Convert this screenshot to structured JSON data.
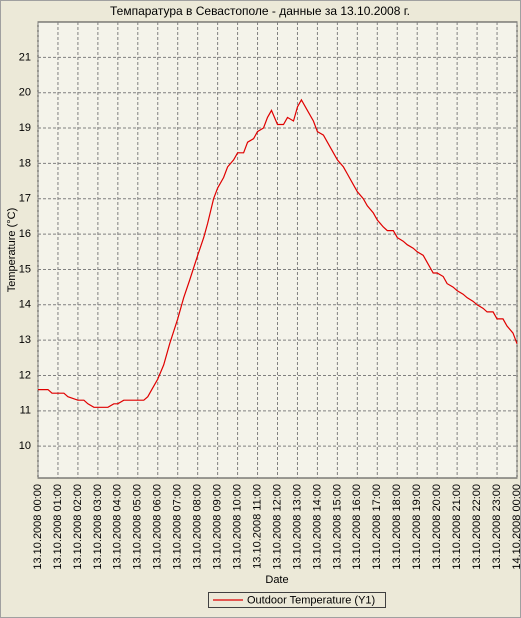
{
  "chart_data": {
    "type": "line",
    "title": "Темпаратура в Севастополе - данные за 13.10.2008 г.",
    "x_label": "Date",
    "y_label": "Temperature (°C)",
    "x": [
      0,
      0.5,
      0.7,
      1.0,
      1.3,
      1.5,
      2.0,
      2.3,
      2.5,
      2.8,
      3.0,
      3.5,
      3.8,
      4.0,
      4.3,
      5.0,
      5.3,
      5.5,
      5.7,
      6.0,
      6.3,
      6.6,
      7.0,
      7.3,
      7.6,
      8.0,
      8.3,
      8.5,
      8.8,
      9.0,
      9.3,
      9.5,
      9.8,
      10.0,
      10.3,
      10.5,
      10.8,
      11.0,
      11.3,
      11.5,
      11.7,
      12.0,
      12.3,
      12.5,
      12.8,
      13.0,
      13.2,
      13.5,
      13.8,
      14.0,
      14.3,
      14.5,
      14.8,
      15.0,
      15.3,
      15.5,
      15.8,
      16.0,
      16.3,
      16.5,
      16.8,
      17.0,
      17.3,
      17.5,
      17.8,
      18.0,
      18.3,
      18.5,
      18.8,
      19.0,
      19.3,
      19.5,
      19.8,
      20.0,
      20.3,
      20.5,
      20.8,
      21.0,
      21.3,
      21.5,
      21.8,
      22.0,
      22.3,
      22.5,
      22.8,
      23.0,
      23.3,
      23.5,
      23.8,
      24.0
    ],
    "series": [
      {
        "name": "Outdoor Temperature (Y1)",
        "color": "#e00000",
        "values": [
          11.6,
          11.6,
          11.5,
          11.5,
          11.5,
          11.4,
          11.3,
          11.3,
          11.2,
          11.1,
          11.1,
          11.1,
          11.2,
          11.2,
          11.3,
          11.3,
          11.3,
          11.4,
          11.6,
          11.9,
          12.3,
          12.9,
          13.6,
          14.2,
          14.7,
          15.4,
          15.9,
          16.3,
          17.0,
          17.3,
          17.6,
          17.9,
          18.1,
          18.3,
          18.3,
          18.6,
          18.7,
          18.9,
          19.0,
          19.3,
          19.5,
          19.1,
          19.1,
          19.3,
          19.2,
          19.6,
          19.8,
          19.5,
          19.2,
          18.9,
          18.8,
          18.6,
          18.3,
          18.1,
          17.9,
          17.7,
          17.4,
          17.2,
          17.0,
          16.8,
          16.6,
          16.4,
          16.2,
          16.1,
          16.1,
          15.9,
          15.8,
          15.7,
          15.6,
          15.5,
          15.4,
          15.2,
          14.9,
          14.9,
          14.8,
          14.6,
          14.5,
          14.4,
          14.3,
          14.2,
          14.1,
          14.0,
          13.9,
          13.8,
          13.8,
          13.6,
          13.6,
          13.4,
          13.2,
          12.9
        ]
      }
    ],
    "xlim": [
      0,
      24
    ],
    "xticks": [
      {
        "value": 0,
        "label": "13.10.2008 00:00"
      },
      {
        "value": 1,
        "label": "13.10.2008 01:00"
      },
      {
        "value": 2,
        "label": "13.10.2008 02:00"
      },
      {
        "value": 3,
        "label": "13.10.2008 03:00"
      },
      {
        "value": 4,
        "label": "13.10.2008 04:00"
      },
      {
        "value": 5,
        "label": "13.10.2008 05:00"
      },
      {
        "value": 6,
        "label": "13.10.2008 06:00"
      },
      {
        "value": 7,
        "label": "13.10.2008 07:00"
      },
      {
        "value": 8,
        "label": "13.10.2008 08:00"
      },
      {
        "value": 9,
        "label": "13.10.2008 09:00"
      },
      {
        "value": 10,
        "label": "13.10.2008 10:00"
      },
      {
        "value": 11,
        "label": "13.10.2008 11:00"
      },
      {
        "value": 12,
        "label": "13.10.2008 12:00"
      },
      {
        "value": 13,
        "label": "13.10.2008 13:00"
      },
      {
        "value": 14,
        "label": "13.10.2008 14:00"
      },
      {
        "value": 15,
        "label": "13.10.2008 15:00"
      },
      {
        "value": 16,
        "label": "13.10.2008 16:00"
      },
      {
        "value": 17,
        "label": "13.10.2008 17:00"
      },
      {
        "value": 18,
        "label": "13.10.2008 18:00"
      },
      {
        "value": 19,
        "label": "13.10.2008 19:00"
      },
      {
        "value": 20,
        "label": "13.10.2008 20:00"
      },
      {
        "value": 21,
        "label": "13.10.2008 21:00"
      },
      {
        "value": 22,
        "label": "13.10.2008 22:00"
      },
      {
        "value": 23,
        "label": "13.10.2008 23:00"
      },
      {
        "value": 24,
        "label": "14.10.2008 00:00"
      }
    ],
    "ylim": [
      9.1,
      22
    ],
    "yticks": [
      10,
      11,
      12,
      13,
      14,
      15,
      16,
      17,
      18,
      19,
      20,
      21
    ],
    "grid": true,
    "legend": "bottom"
  }
}
